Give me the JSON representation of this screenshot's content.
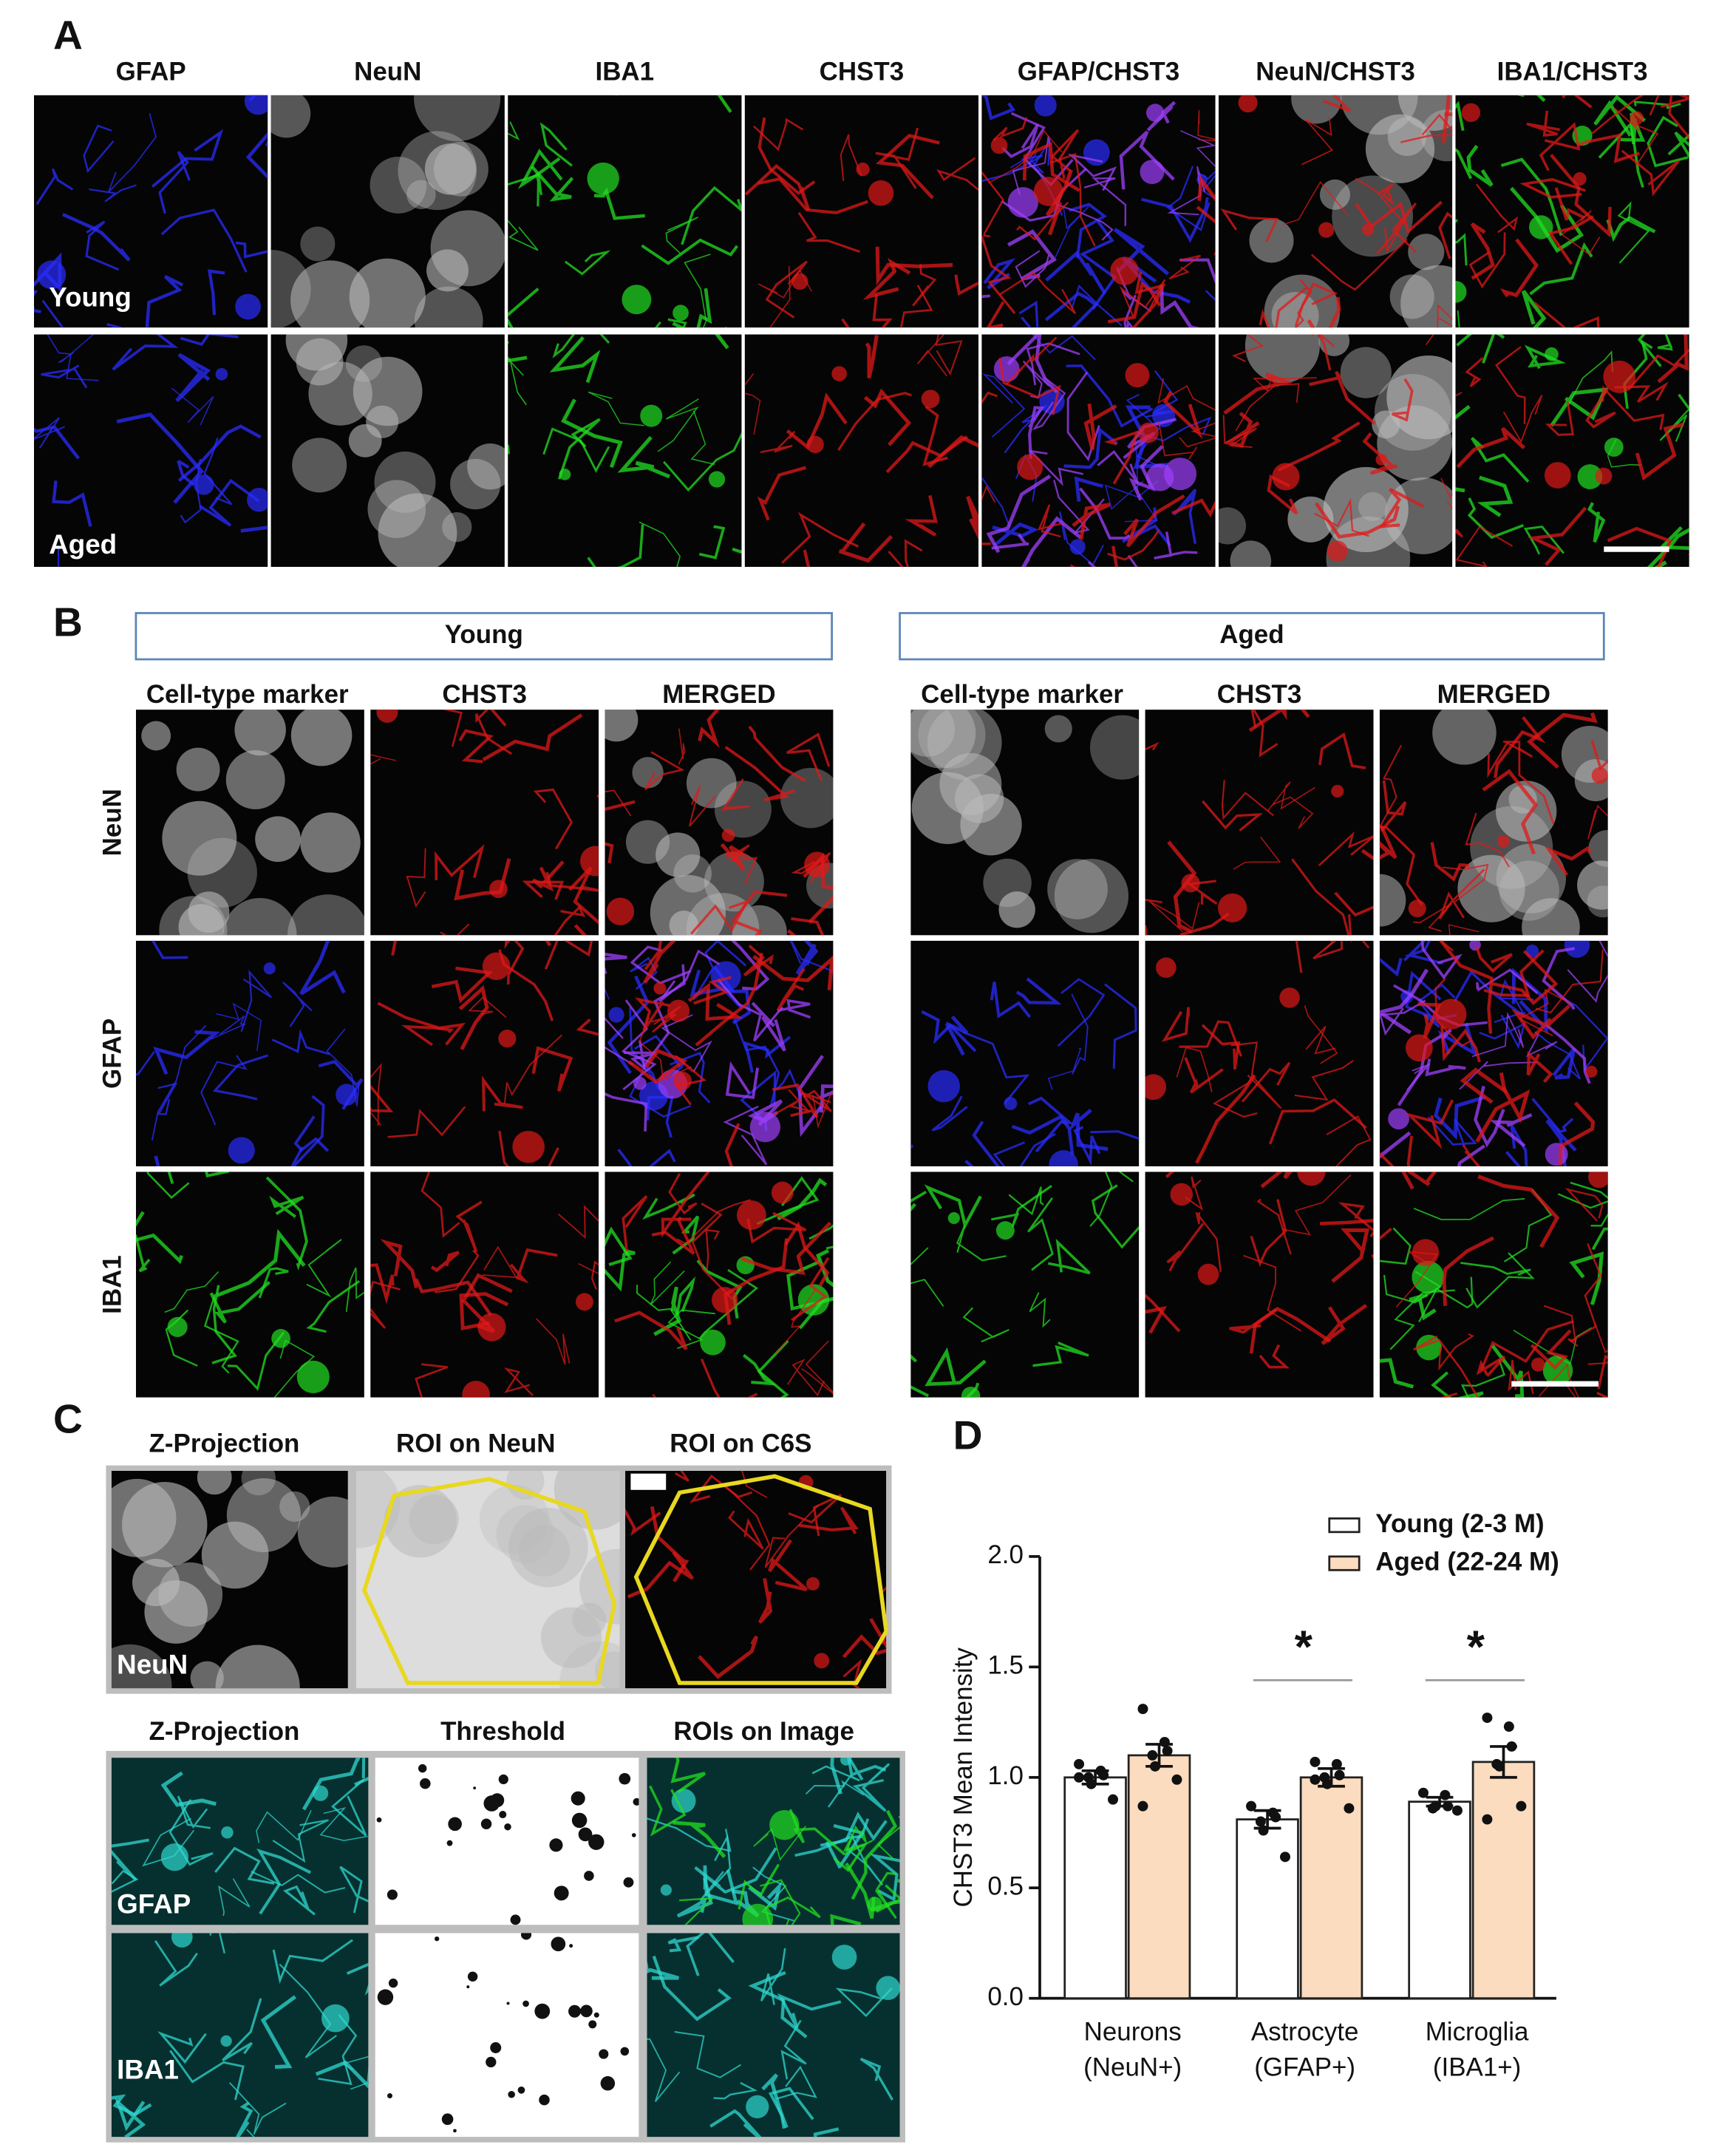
{
  "panel_labels": [
    "A",
    "B",
    "C",
    "D"
  ],
  "panel_a": {
    "columns": [
      "GFAP",
      "NeuN",
      "IBA1",
      "CHST3",
      "GFAP/CHST3",
      "NeuN/CHST3",
      "IBA1/CHST3"
    ],
    "rows": [
      "Young",
      "Aged"
    ]
  },
  "panel_b": {
    "groups": [
      "Young",
      "Aged"
    ],
    "columns": [
      "Cell-type marker",
      "CHST3",
      "MERGED"
    ],
    "rows": [
      "NeuN",
      "GFAP",
      "IBA1"
    ]
  },
  "panel_c": {
    "top": {
      "columns": [
        "Z-Projection",
        "ROI on NeuN",
        "ROI on C6S"
      ],
      "label": "NeuN"
    },
    "bottom": {
      "columns": [
        "Z-Projection",
        "Threshold",
        "ROIs on Image"
      ],
      "rows": [
        "GFAP",
        "IBA1"
      ]
    }
  },
  "chart_data": {
    "type": "bar",
    "ylabel": "CHST3 Mean Intensity",
    "categories": [
      [
        "Neurons",
        "(NeuN+)"
      ],
      [
        "Astrocyte",
        "(GFAP+)"
      ],
      [
        "Microglia",
        "(IBA1+)"
      ]
    ],
    "ylim": [
      0,
      2
    ],
    "yticks": [
      {
        "value": 0,
        "label": "0.0"
      },
      {
        "value": 0.5,
        "label": "0.5"
      },
      {
        "value": 1,
        "label": "1.0"
      },
      {
        "value": 1.5,
        "label": "1.5"
      },
      {
        "value": 2,
        "label": "2.0"
      }
    ],
    "legend": "top-right",
    "series": [
      {
        "name": "Young (2-3 M)",
        "color": "#ffffff",
        "values": [
          1.0,
          0.81,
          0.89
        ],
        "errors": [
          0.03,
          0.04,
          0.02
        ],
        "points": [
          [
            1.06,
            1.03,
            1.01,
            1.0,
            0.97,
            0.9,
            1.0
          ],
          [
            0.87,
            0.84,
            0.82,
            0.8,
            0.76,
            0.64
          ],
          [
            0.93,
            0.92,
            0.87,
            0.86,
            0.87,
            0.85
          ]
        ]
      },
      {
        "name": "Aged (22-24 M)",
        "color": "#fbdcbf",
        "values": [
          1.1,
          1.0,
          1.07
        ],
        "errors": [
          0.05,
          0.04,
          0.07
        ],
        "points": [
          [
            1.31,
            1.16,
            1.12,
            1.1,
            1.05,
            0.99,
            0.87
          ],
          [
            1.07,
            1.06,
            1.01,
            1.0,
            0.97,
            0.86,
            0.99
          ],
          [
            1.27,
            1.23,
            1.14,
            1.06,
            1.05,
            0.87,
            0.81
          ]
        ]
      }
    ],
    "significance": [
      null,
      "*",
      "*"
    ]
  }
}
